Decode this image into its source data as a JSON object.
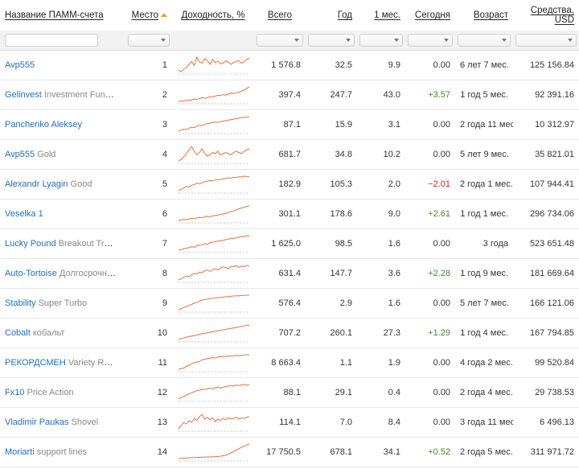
{
  "header": {
    "name": "Название ПАММ-счета",
    "place": "Место",
    "yield": "Доходность, %",
    "total": "Всего",
    "year": "Год",
    "month": "1 мес.",
    "today": "Сегодня",
    "age": "Возраст",
    "funds": "Средства, USD"
  },
  "accounts": [
    {
      "name": "Avp555",
      "sub": "",
      "place": "1",
      "total": "1 576.8",
      "year": "32.5",
      "month": "9.9",
      "today": "0.00",
      "today_sign": "zero",
      "age": "6 лет 7 мес.",
      "funds": "125 156.84",
      "spark": [
        50,
        48,
        52,
        55,
        60,
        65,
        58,
        72,
        64,
        62,
        70,
        66,
        60,
        68,
        63,
        65,
        61,
        62,
        66,
        64,
        60,
        63,
        65,
        66,
        62,
        64,
        68,
        70
      ]
    },
    {
      "name": "Gelinvest",
      "sub": "Investment Fund ...",
      "place": "2",
      "total": "397.4",
      "year": "247.7",
      "month": "43.0",
      "today": "+3.57",
      "today_sign": "pos",
      "age": "1 год 5 мес.",
      "funds": "92 391.16",
      "spark": [
        20,
        22,
        21,
        24,
        26,
        25,
        30,
        28,
        32,
        35,
        33,
        36,
        40,
        38,
        42,
        45,
        44,
        48,
        46,
        50,
        54,
        52,
        56,
        58,
        62,
        66,
        74,
        80
      ]
    },
    {
      "name": "Panchenko Aleksey",
      "sub": "",
      "place": "3",
      "total": "87.1",
      "year": "15.9",
      "month": "3.1",
      "today": "0.00",
      "today_sign": "zero",
      "age": "2 года 11 мес.",
      "funds": "10 312.97",
      "spark": [
        20,
        24,
        28,
        26,
        32,
        36,
        34,
        40,
        44,
        42,
        48,
        50,
        52,
        54,
        56,
        55,
        58,
        60,
        62,
        64,
        66,
        68,
        70,
        72,
        74,
        75,
        76,
        78
      ]
    },
    {
      "name": "Avp555",
      "sub": "Gold",
      "place": "4",
      "total": "681.7",
      "year": "34.8",
      "month": "10.2",
      "today": "0.00",
      "today_sign": "zero",
      "age": "5 лет 9 мес.",
      "funds": "35 821.01",
      "spark": [
        48,
        50,
        55,
        60,
        66,
        72,
        64,
        58,
        62,
        68,
        60,
        56,
        58,
        62,
        60,
        64,
        58,
        60,
        62,
        60,
        58,
        62,
        64,
        62,
        60,
        64,
        66,
        68
      ]
    },
    {
      "name": "Alexandr Lyagin",
      "sub": "Good",
      "place": "5",
      "total": "182.9",
      "year": "105.3",
      "month": "2.0",
      "today": "−2.01",
      "today_sign": "neg",
      "age": "2 года 1 мес.",
      "funds": "107 944.41",
      "spark": [
        25,
        30,
        35,
        40,
        38,
        44,
        48,
        52,
        50,
        54,
        58,
        60,
        62,
        61,
        64,
        66,
        65,
        68,
        70,
        72,
        71,
        74,
        73,
        76,
        75,
        78,
        77,
        76
      ]
    },
    {
      "name": "Veselka 1",
      "sub": "",
      "place": "6",
      "total": "301.1",
      "year": "178.6",
      "month": "9.0",
      "today": "+2.61",
      "today_sign": "pos",
      "age": "1 год 1 мес.",
      "funds": "296 734.06",
      "spark": [
        22,
        24,
        26,
        25,
        28,
        30,
        29,
        32,
        34,
        33,
        36,
        38,
        37,
        40,
        42,
        44,
        46,
        48,
        50,
        54,
        58,
        60,
        64,
        68,
        72,
        74,
        78,
        80
      ]
    },
    {
      "name": "Lucky Pound",
      "sub": "Breakout Trad...",
      "place": "7",
      "total": "1 625.0",
      "year": "98.5",
      "month": "1.6",
      "today": "0.00",
      "today_sign": "zero",
      "age": "3 года",
      "funds": "523 651.48",
      "spark": [
        22,
        24,
        28,
        30,
        32,
        36,
        34,
        40,
        42,
        44,
        48,
        46,
        52,
        54,
        56,
        58,
        60,
        62,
        64,
        66,
        70,
        68,
        72,
        74,
        78,
        76,
        80,
        78
      ]
    },
    {
      "name": "Auto-Tortoise",
      "sub": "Долгосрочны...",
      "place": "8",
      "total": "631.4",
      "year": "147.7",
      "month": "3.6",
      "today": "+2.28",
      "today_sign": "pos",
      "age": "1 год 9 мес.",
      "funds": "181 669.64",
      "spark": [
        30,
        34,
        38,
        42,
        40,
        46,
        50,
        48,
        54,
        52,
        58,
        60,
        56,
        62,
        64,
        60,
        66,
        70,
        68,
        64,
        72,
        70,
        74,
        68,
        72,
        70,
        74,
        72
      ]
    },
    {
      "name": "Stability",
      "sub": "Super Turbo",
      "place": "9",
      "total": "576.4",
      "year": "2.9",
      "month": "1.6",
      "today": "0.00",
      "today_sign": "zero",
      "age": "5 лет 7 мес.",
      "funds": "166 121.06",
      "spark": [
        20,
        24,
        28,
        32,
        36,
        40,
        44,
        48,
        52,
        56,
        58,
        60,
        62,
        63,
        64,
        65,
        66,
        67,
        68,
        69,
        70,
        71,
        72,
        72,
        73,
        73,
        74,
        74
      ]
    },
    {
      "name": "Cobalt",
      "sub": "кобальт",
      "place": "10",
      "total": "707.2",
      "year": "260.1",
      "month": "27.3",
      "today": "+1.29",
      "today_sign": "pos",
      "age": "1 год 4 мес.",
      "funds": "167 794.85",
      "spark": [
        20,
        24,
        26,
        30,
        32,
        34,
        36,
        38,
        42,
        44,
        46,
        48,
        50,
        52,
        54,
        56,
        58,
        60,
        62,
        64,
        66,
        68,
        70,
        72,
        74,
        76,
        80,
        78
      ]
    },
    {
      "name": "РЕКОРДСМЕН",
      "sub": "Variety RUB",
      "place": "11",
      "total": "8 663.4",
      "year": "1.1",
      "month": "1.9",
      "today": "0.00",
      "today_sign": "zero",
      "age": "4 года 2 мес.",
      "funds": "99 520.84",
      "spark": [
        20,
        22,
        24,
        30,
        34,
        40,
        44,
        46,
        48,
        54,
        56,
        58,
        60,
        62,
        60,
        64,
        66,
        65,
        66,
        68,
        67,
        68,
        70,
        69,
        70,
        71,
        72,
        72
      ]
    },
    {
      "name": "Fx10",
      "sub": "Price Action",
      "place": "12",
      "total": "88.1",
      "year": "29.1",
      "month": "0.4",
      "today": "0.00",
      "today_sign": "zero",
      "age": "2 года 4 мес.",
      "funds": "29 738.53",
      "spark": [
        20,
        26,
        30,
        36,
        40,
        44,
        48,
        52,
        54,
        58,
        56,
        60,
        62,
        58,
        64,
        66,
        62,
        66,
        68,
        70,
        72,
        70,
        74,
        72,
        74,
        76,
        74,
        75
      ]
    },
    {
      "name": "Vladimir Paukas",
      "sub": "Shovel",
      "place": "13",
      "total": "114.1",
      "year": "7.0",
      "month": "8.4",
      "today": "0.00",
      "today_sign": "zero",
      "age": "3 года 11 мес.",
      "funds": "6 496.13",
      "spark": [
        30,
        40,
        50,
        45,
        55,
        50,
        62,
        56,
        68,
        75,
        60,
        66,
        58,
        64,
        52,
        60,
        56,
        62,
        58,
        64,
        60,
        62,
        66,
        60,
        64,
        62,
        66,
        68
      ]
    },
    {
      "name": "Moriarti",
      "sub": "support lines",
      "place": "14",
      "total": "17 750.5",
      "year": "678.1",
      "month": "34.1",
      "today": "+0.52",
      "today_sign": "pos",
      "age": "2 года 5 мес.",
      "funds": "311 971.72",
      "spark": [
        20,
        21,
        22,
        22,
        23,
        24,
        24,
        25,
        25,
        26,
        26,
        27,
        27,
        28,
        28,
        29,
        30,
        32,
        34,
        38,
        44,
        50,
        56,
        62,
        68,
        72,
        78,
        82
      ]
    }
  ],
  "colors": {
    "link": "#1d6fc1",
    "positive": "#3c8d1e",
    "negative": "#d02020",
    "spark": "#e9703a",
    "sort_arrow": "#f0a020"
  }
}
